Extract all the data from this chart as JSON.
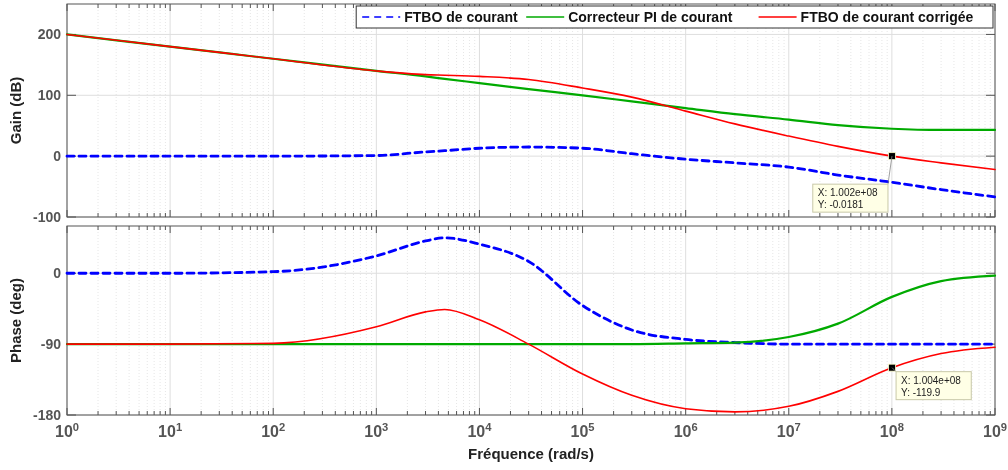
{
  "chart_data": [
    {
      "type": "line",
      "ylabel": "Gain (dB)",
      "log": "x",
      "grid": true,
      "legend": "top right",
      "tick_labels": "y",
      "xlim": [
        1,
        1000000000
      ],
      "ylim": [
        -100,
        250
      ],
      "xticks": [
        {
          "value": 1,
          "label": null
        },
        {
          "value": 10,
          "label": null
        },
        {
          "value": 100,
          "label": null
        },
        {
          "value": 1000,
          "label": null
        },
        {
          "value": 10000,
          "label": null
        },
        {
          "value": 100000,
          "label": null
        },
        {
          "value": 1000000,
          "label": null
        },
        {
          "value": 10000000,
          "label": null
        },
        {
          "value": 100000000,
          "label": null
        },
        {
          "value": 1000000000,
          "label": null
        }
      ],
      "yticks": [
        -100,
        0,
        100,
        200
      ],
      "x": [
        1,
        10,
        100,
        1000,
        3000,
        4600,
        10000,
        30000,
        100000,
        300000,
        1000000,
        3000000,
        10000000,
        30000000,
        100000000,
        300000000,
        1000000000
      ],
      "series": [
        {
          "name": "FTBO de courant",
          "color": "#0000ff",
          "line_style": "dashed",
          "values": [
            0,
            0,
            0,
            1,
            7,
            9,
            13,
            15,
            13,
            4,
            -5,
            -11,
            -18,
            -31,
            -43,
            -55,
            -67
          ]
        },
        {
          "name": "Correcteur PI de courant",
          "color": "#00aa00",
          "line_style": "solid",
          "values": [
            200,
            180,
            160,
            140,
            131,
            127,
            120,
            110,
            100,
            90,
            79,
            69,
            60,
            51,
            45,
            43,
            43
          ]
        },
        {
          "name": "FTBO de courant corrigée",
          "color": "#ff0000",
          "line_style": "solid",
          "values": [
            200,
            180,
            160,
            140,
            134,
            133,
            131,
            126,
            112,
            97,
            74,
            53,
            33,
            16,
            0,
            -11,
            -22
          ]
        }
      ],
      "annotations": [
        {
          "text": "X: 1.002e+08\nY: -0.0181",
          "x": 100200000,
          "y": -0.0181
        }
      ]
    },
    {
      "type": "line",
      "ylabel": "Phase (deg)",
      "xlabel": "Fréquence  (rad/s)",
      "log": "x",
      "grid": true,
      "xlim": [
        1,
        1000000000
      ],
      "ylim": [
        -180,
        60
      ],
      "xticks": [
        {
          "value": 1,
          "label": "10$^{0}$"
        },
        {
          "value": 10,
          "label": "10$^{1}$"
        },
        {
          "value": 100,
          "label": "10$^{2}$"
        },
        {
          "value": 1000,
          "label": "10$^{3}$"
        },
        {
          "value": 10000,
          "label": "10$^{4}$"
        },
        {
          "value": 100000,
          "label": "10$^{5}$"
        },
        {
          "value": 1000000,
          "label": "10$^{6}$"
        },
        {
          "value": 10000000,
          "label": "10$^{7}$"
        },
        {
          "value": 100000000,
          "label": "10$^{8}$"
        },
        {
          "value": 1000000000,
          "label": "10$^{9}$"
        }
      ],
      "yticks": [
        -180,
        -90,
        0
      ],
      "x": [
        1,
        10,
        100,
        1000,
        3000,
        4600,
        10000,
        30000,
        100000,
        300000,
        1000000,
        3000000,
        10000000,
        30000000,
        100000000,
        300000000,
        1000000000
      ],
      "series": [
        {
          "color": "#0000ff",
          "line_style": "dashed",
          "values": [
            0,
            0,
            2,
            22,
            41,
            45,
            37,
            15,
            -41,
            -72,
            -84,
            -88,
            -90,
            -90,
            -90,
            -90,
            -90
          ]
        },
        {
          "color": "#00aa00",
          "line_style": "solid",
          "values": [
            -90,
            -90,
            -90,
            -90,
            -90,
            -90,
            -90,
            -90,
            -90,
            -90,
            -89,
            -88,
            -81,
            -64,
            -30,
            -10,
            -3
          ]
        },
        {
          "color": "#ff0000",
          "line_style": "solid",
          "values": [
            -90,
            -90,
            -89,
            -68,
            -49,
            -46,
            -59,
            -90,
            -128,
            -155,
            -172,
            -176,
            -169,
            -150,
            -120,
            -102,
            -94
          ]
        }
      ],
      "annotations": [
        {
          "text": "X: 1.004e+08\nY: -119.9",
          "x": 100400000,
          "y": -119.9
        }
      ]
    }
  ]
}
